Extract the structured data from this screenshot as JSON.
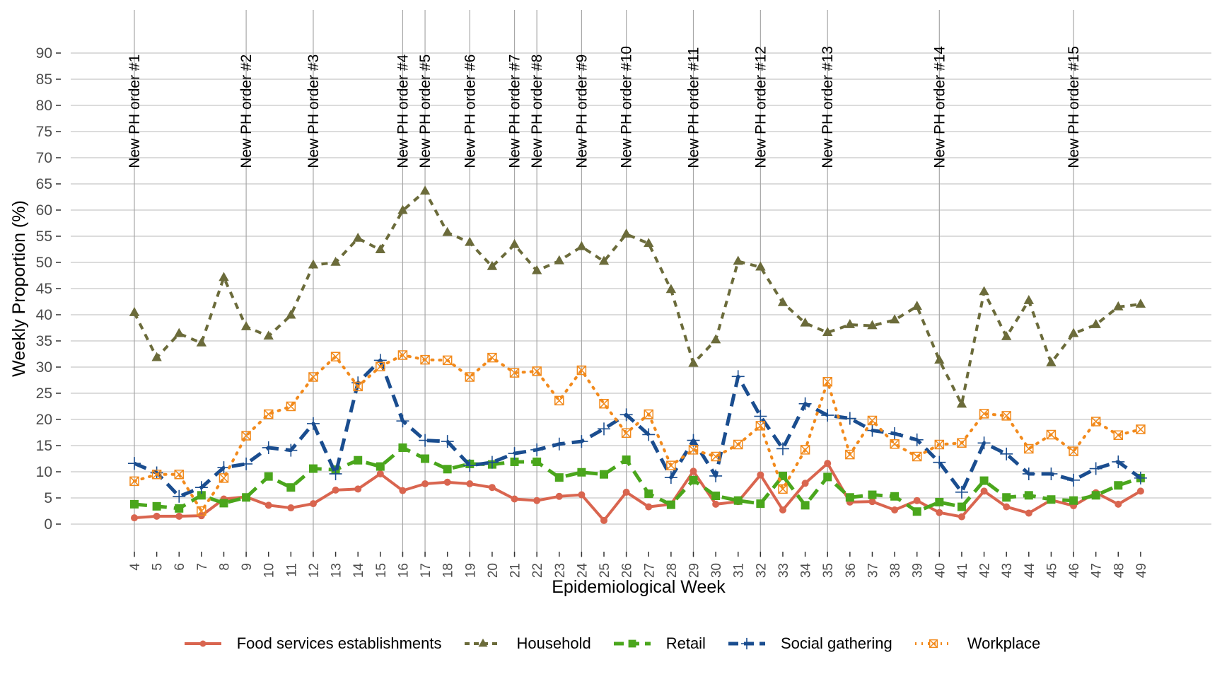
{
  "chart_data": {
    "type": "line",
    "title": "",
    "xlabel": "Epidemiological Week",
    "ylabel": "Weekly Proportion (%)",
    "ylim": [
      0,
      90
    ],
    "yticks": [
      0,
      5,
      10,
      15,
      20,
      25,
      30,
      35,
      40,
      45,
      50,
      55,
      60,
      65,
      70,
      75,
      80,
      85,
      90
    ],
    "x": [
      4,
      5,
      6,
      7,
      8,
      9,
      10,
      11,
      12,
      13,
      14,
      15,
      16,
      17,
      18,
      19,
      20,
      21,
      22,
      23,
      24,
      25,
      26,
      27,
      28,
      29,
      30,
      31,
      32,
      33,
      34,
      35,
      36,
      37,
      38,
      39,
      40,
      41,
      42,
      43,
      44,
      45,
      46,
      47,
      48,
      49
    ],
    "grid": true,
    "legend_position": "bottom",
    "annotations": [
      {
        "x": 4,
        "label": "New PH order #1"
      },
      {
        "x": 9,
        "label": "New PH order #2"
      },
      {
        "x": 12,
        "label": "New PH order #3"
      },
      {
        "x": 16,
        "label": "New PH order #4"
      },
      {
        "x": 17,
        "label": "New PH order #5"
      },
      {
        "x": 19,
        "label": "New PH order #6"
      },
      {
        "x": 21,
        "label": "New PH order #7"
      },
      {
        "x": 22,
        "label": "New PH order #8"
      },
      {
        "x": 24,
        "label": "New PH order #9"
      },
      {
        "x": 26,
        "label": "New PH order #10"
      },
      {
        "x": 29,
        "label": "New PH order #11"
      },
      {
        "x": 32,
        "label": "New PH order #12"
      },
      {
        "x": 35,
        "label": "New PH order #13"
      },
      {
        "x": 40,
        "label": "New PH order #14"
      },
      {
        "x": 46,
        "label": "New PH order #15"
      }
    ],
    "series": [
      {
        "name": "Food services establishments",
        "color": "#d9654f",
        "dash": "solid",
        "marker": "circle",
        "values": [
          1.2,
          1.5,
          1.5,
          1.6,
          4.8,
          5.2,
          3.6,
          3.1,
          3.9,
          6.5,
          6.7,
          9.6,
          6.4,
          7.7,
          8.0,
          7.7,
          7.0,
          4.8,
          4.5,
          5.3,
          5.6,
          0.7,
          6.1,
          3.3,
          3.8,
          10.1,
          3.8,
          4.3,
          9.4,
          2.7,
          7.8,
          11.6,
          4.2,
          4.3,
          2.7,
          4.5,
          2.2,
          1.4,
          6.3,
          3.3,
          2.1,
          4.6,
          3.5,
          6.0,
          3.8,
          6.3
        ]
      },
      {
        "name": "Household",
        "color": "#6b6b3a",
        "dash": "dashed",
        "marker": "triangle",
        "values": [
          40.4,
          31.8,
          36.4,
          34.6,
          47.1,
          37.7,
          35.9,
          39.9,
          49.5,
          50.0,
          54.6,
          52.4,
          59.9,
          63.6,
          55.7,
          53.8,
          49.2,
          53.4,
          48.4,
          50.3,
          53.0,
          50.2,
          55.4,
          53.6,
          44.8,
          30.7,
          35.2,
          50.2,
          49.1,
          42.3,
          38.4,
          36.6,
          38.1,
          37.9,
          39.0,
          41.6,
          31.3,
          22.9,
          44.4,
          35.8,
          42.7,
          30.8,
          36.4,
          38.1,
          41.5,
          42.0
        ]
      },
      {
        "name": "Retail",
        "color": "#4aa61c",
        "dash": "longdash",
        "marker": "square",
        "values": [
          3.8,
          3.4,
          3.0,
          5.5,
          4.0,
          5.1,
          9.1,
          7.0,
          10.6,
          10.4,
          12.2,
          11.0,
          14.6,
          12.5,
          10.5,
          11.5,
          11.4,
          11.9,
          11.9,
          8.9,
          9.9,
          9.5,
          12.3,
          5.8,
          3.7,
          8.4,
          5.4,
          4.5,
          3.9,
          9.2,
          3.6,
          9.0,
          5.1,
          5.6,
          5.3,
          2.4,
          4.2,
          3.3,
          8.3,
          5.1,
          5.5,
          4.7,
          4.5,
          5.5,
          7.4,
          8.8
        ]
      },
      {
        "name": "Social gathering",
        "color": "#1a4d8f",
        "dash": "longdash",
        "marker": "plus",
        "values": [
          11.6,
          9.8,
          5.3,
          7.0,
          10.8,
          11.5,
          14.6,
          14.1,
          19.2,
          9.6,
          27.0,
          31.3,
          19.7,
          16.0,
          15.8,
          11.2,
          11.8,
          13.5,
          14.2,
          15.3,
          15.8,
          18.2,
          20.9,
          17.1,
          8.9,
          16.0,
          9.2,
          28.2,
          20.6,
          14.4,
          23.0,
          20.8,
          20.2,
          17.9,
          17.3,
          16.1,
          11.8,
          6.1,
          15.5,
          13.4,
          9.6,
          9.6,
          8.4,
          10.6,
          11.9,
          8.8
        ]
      },
      {
        "name": "Workplace",
        "color": "#f28a1c",
        "dash": "dotted",
        "marker": "square-x",
        "values": [
          8.2,
          9.5,
          9.5,
          2.5,
          8.8,
          16.9,
          21.0,
          22.5,
          28.1,
          32.0,
          26.3,
          30.1,
          32.3,
          31.4,
          31.3,
          28.1,
          31.8,
          28.9,
          29.2,
          23.6,
          29.4,
          23.0,
          17.4,
          21.0,
          11.2,
          14.2,
          12.9,
          15.2,
          18.8,
          6.7,
          14.2,
          27.2,
          13.3,
          19.8,
          15.3,
          12.9,
          15.2,
          15.5,
          21.1,
          20.7,
          14.4,
          17.1,
          13.9,
          19.6,
          17.0,
          18.1
        ]
      }
    ]
  }
}
